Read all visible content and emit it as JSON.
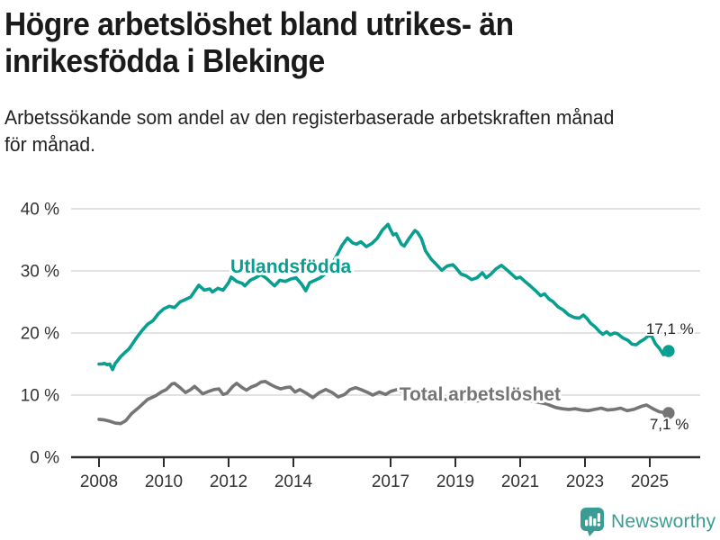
{
  "header": {
    "title_line1": "Högre arbetslöshet bland utrikes- än",
    "title_line2": "inrikesfödda i Blekinge",
    "subtitle_line1": "Arbetssökande som andel av den registerbaserade arbetskraften månad",
    "subtitle_line2": "för månad."
  },
  "footer": {
    "brand": "Newsworthy",
    "brand_color": "#3a9d95"
  },
  "colors": {
    "series_foreign_born": "#089e90",
    "series_total": "#757575",
    "axis": "#2e2e2e",
    "tick_label": "#333333",
    "grid": "#d9d9d9",
    "value_label": "#222222",
    "background": "#ffffff"
  },
  "chart_data": {
    "type": "line",
    "title": "Högre arbetslöshet bland utrikes- än inrikesfödda i Blekinge",
    "subtitle": "Arbetssökande som andel av den registerbaserade arbetskraften månad för månad.",
    "xlabel": "",
    "ylabel": "",
    "grid": "horizontal",
    "legend_position": "inline-labels",
    "ylim": [
      0,
      40
    ],
    "y_ticks": [
      0,
      10,
      20,
      30,
      40
    ],
    "y_tick_labels": [
      "0 %",
      "10 %",
      "20 %",
      "30 %",
      "40 %"
    ],
    "x_ticks": [
      2008,
      2010,
      2012,
      2014,
      2017,
      2019,
      2021,
      2023,
      2025
    ],
    "x_tick_labels": [
      "2008",
      "2010",
      "2012",
      "2014",
      "2017",
      "2019",
      "2021",
      "2023",
      "2025"
    ],
    "series": [
      {
        "name": "Utlandsfödda",
        "color": "#089e90",
        "end_value_label": "17,1 %",
        "name_label_pos": {
          "x": 2013.92,
          "y": 29.7
        },
        "end_label_pos": {
          "x": 2025.62,
          "y": 19.85
        },
        "points": [
          [
            2008.0,
            15.0
          ],
          [
            2008.08,
            15.0
          ],
          [
            2008.17,
            15.1
          ],
          [
            2008.25,
            14.9
          ],
          [
            2008.33,
            15.0
          ],
          [
            2008.42,
            14.1
          ],
          [
            2008.5,
            15.1
          ],
          [
            2008.58,
            15.6
          ],
          [
            2008.67,
            16.2
          ],
          [
            2008.75,
            16.6
          ],
          [
            2008.83,
            17.0
          ],
          [
            2008.92,
            17.4
          ],
          [
            2009.0,
            18.0
          ],
          [
            2009.17,
            19.3
          ],
          [
            2009.33,
            20.4
          ],
          [
            2009.5,
            21.4
          ],
          [
            2009.67,
            22.0
          ],
          [
            2009.83,
            23.1
          ],
          [
            2010.0,
            23.9
          ],
          [
            2010.17,
            24.3
          ],
          [
            2010.33,
            24.1
          ],
          [
            2010.5,
            25.0
          ],
          [
            2010.67,
            25.4
          ],
          [
            2010.83,
            25.8
          ],
          [
            2011.0,
            27.1
          ],
          [
            2011.08,
            27.7
          ],
          [
            2011.25,
            26.9
          ],
          [
            2011.42,
            27.1
          ],
          [
            2011.5,
            26.6
          ],
          [
            2011.67,
            27.2
          ],
          [
            2011.83,
            26.9
          ],
          [
            2012.0,
            28.1
          ],
          [
            2012.08,
            29.0
          ],
          [
            2012.25,
            28.3
          ],
          [
            2012.42,
            28.0
          ],
          [
            2012.5,
            27.6
          ],
          [
            2012.67,
            28.5
          ],
          [
            2012.83,
            28.9
          ],
          [
            2013.0,
            29.4
          ],
          [
            2013.17,
            28.8
          ],
          [
            2013.33,
            28.0
          ],
          [
            2013.42,
            27.6
          ],
          [
            2013.58,
            28.5
          ],
          [
            2013.75,
            28.3
          ],
          [
            2013.92,
            28.7
          ],
          [
            2014.08,
            28.9
          ],
          [
            2014.25,
            27.9
          ],
          [
            2014.38,
            26.8
          ],
          [
            2014.5,
            28.1
          ],
          [
            2014.67,
            28.5
          ],
          [
            2014.83,
            28.9
          ],
          [
            2015.0,
            29.6
          ],
          [
            2015.17,
            30.9
          ],
          [
            2015.33,
            32.4
          ],
          [
            2015.5,
            34.1
          ],
          [
            2015.67,
            35.3
          ],
          [
            2015.83,
            34.5
          ],
          [
            2015.95,
            34.3
          ],
          [
            2016.08,
            34.7
          ],
          [
            2016.25,
            33.9
          ],
          [
            2016.42,
            34.4
          ],
          [
            2016.58,
            35.2
          ],
          [
            2016.75,
            36.6
          ],
          [
            2016.92,
            37.5
          ],
          [
            2017.0,
            36.6
          ],
          [
            2017.08,
            35.8
          ],
          [
            2017.17,
            36.0
          ],
          [
            2017.33,
            34.3
          ],
          [
            2017.42,
            34.0
          ],
          [
            2017.58,
            35.3
          ],
          [
            2017.75,
            36.5
          ],
          [
            2017.83,
            36.2
          ],
          [
            2017.95,
            35.2
          ],
          [
            2018.08,
            33.2
          ],
          [
            2018.25,
            31.9
          ],
          [
            2018.42,
            31.0
          ],
          [
            2018.58,
            30.1
          ],
          [
            2018.75,
            30.8
          ],
          [
            2018.92,
            31.0
          ],
          [
            2019.0,
            30.6
          ],
          [
            2019.17,
            29.5
          ],
          [
            2019.33,
            29.2
          ],
          [
            2019.5,
            28.6
          ],
          [
            2019.67,
            28.9
          ],
          [
            2019.83,
            29.7
          ],
          [
            2019.95,
            28.9
          ],
          [
            2020.08,
            29.4
          ],
          [
            2020.25,
            30.3
          ],
          [
            2020.42,
            30.9
          ],
          [
            2020.58,
            30.2
          ],
          [
            2020.75,
            29.4
          ],
          [
            2020.88,
            28.8
          ],
          [
            2021.0,
            29.0
          ],
          [
            2021.17,
            28.2
          ],
          [
            2021.33,
            27.5
          ],
          [
            2021.5,
            26.7
          ],
          [
            2021.63,
            26.0
          ],
          [
            2021.75,
            26.3
          ],
          [
            2021.9,
            25.4
          ],
          [
            2022.0,
            25.1
          ],
          [
            2022.17,
            24.2
          ],
          [
            2022.33,
            23.7
          ],
          [
            2022.5,
            22.9
          ],
          [
            2022.67,
            22.5
          ],
          [
            2022.83,
            22.4
          ],
          [
            2022.95,
            22.9
          ],
          [
            2023.05,
            22.4
          ],
          [
            2023.17,
            21.6
          ],
          [
            2023.33,
            20.9
          ],
          [
            2023.45,
            20.2
          ],
          [
            2023.55,
            19.8
          ],
          [
            2023.67,
            20.2
          ],
          [
            2023.78,
            19.7
          ],
          [
            2023.9,
            20.0
          ],
          [
            2024.0,
            19.9
          ],
          [
            2024.17,
            19.2
          ],
          [
            2024.33,
            18.8
          ],
          [
            2024.45,
            18.2
          ],
          [
            2024.58,
            18.1
          ],
          [
            2024.7,
            18.6
          ],
          [
            2024.83,
            19.0
          ],
          [
            2024.95,
            19.5
          ],
          [
            2025.05,
            19.6
          ],
          [
            2025.17,
            18.3
          ],
          [
            2025.3,
            17.5
          ],
          [
            2025.42,
            16.5
          ],
          [
            2025.58,
            17.1
          ]
        ]
      },
      {
        "name": "Total arbetslöshet",
        "color": "#757575",
        "end_value_label": "7,1 %",
        "name_label_pos": {
          "x": 2019.76,
          "y": 9.1
        },
        "end_label_pos": {
          "x": 2025.6,
          "y": 4.5
        },
        "points": [
          [
            2008.0,
            6.1
          ],
          [
            2008.17,
            6.0
          ],
          [
            2008.33,
            5.8
          ],
          [
            2008.5,
            5.5
          ],
          [
            2008.67,
            5.4
          ],
          [
            2008.83,
            5.9
          ],
          [
            2009.0,
            7.0
          ],
          [
            2009.25,
            8.1
          ],
          [
            2009.5,
            9.3
          ],
          [
            2009.75,
            9.9
          ],
          [
            2009.92,
            10.5
          ],
          [
            2010.08,
            10.9
          ],
          [
            2010.25,
            11.8
          ],
          [
            2010.33,
            11.9
          ],
          [
            2010.5,
            11.2
          ],
          [
            2010.67,
            10.4
          ],
          [
            2010.83,
            10.9
          ],
          [
            2010.95,
            11.4
          ],
          [
            2011.08,
            10.8
          ],
          [
            2011.2,
            10.2
          ],
          [
            2011.38,
            10.6
          ],
          [
            2011.55,
            10.9
          ],
          [
            2011.7,
            11.0
          ],
          [
            2011.83,
            10.1
          ],
          [
            2011.95,
            10.3
          ],
          [
            2012.13,
            11.4
          ],
          [
            2012.25,
            11.9
          ],
          [
            2012.42,
            11.2
          ],
          [
            2012.55,
            10.8
          ],
          [
            2012.7,
            11.3
          ],
          [
            2012.85,
            11.6
          ],
          [
            2013.0,
            12.1
          ],
          [
            2013.13,
            12.2
          ],
          [
            2013.3,
            11.7
          ],
          [
            2013.45,
            11.3
          ],
          [
            2013.6,
            11.0
          ],
          [
            2013.75,
            11.2
          ],
          [
            2013.9,
            11.3
          ],
          [
            2014.05,
            10.5
          ],
          [
            2014.2,
            10.9
          ],
          [
            2014.4,
            10.3
          ],
          [
            2014.6,
            9.6
          ],
          [
            2014.8,
            10.4
          ],
          [
            2015.0,
            10.9
          ],
          [
            2015.2,
            10.4
          ],
          [
            2015.38,
            9.7
          ],
          [
            2015.58,
            10.1
          ],
          [
            2015.75,
            10.9
          ],
          [
            2015.92,
            11.2
          ],
          [
            2016.08,
            10.9
          ],
          [
            2016.3,
            10.4
          ],
          [
            2016.45,
            10.0
          ],
          [
            2016.65,
            10.5
          ],
          [
            2016.85,
            10.1
          ],
          [
            2017.0,
            10.6
          ],
          [
            2017.2,
            10.9
          ],
          [
            2017.5,
            10.2
          ],
          [
            2017.8,
            9.9
          ],
          [
            2018.2,
            9.5
          ],
          [
            2018.6,
            9.3
          ],
          [
            2019.0,
            9.2
          ],
          [
            2019.4,
            9.0
          ],
          [
            2019.8,
            9.1
          ],
          [
            2020.2,
            9.8
          ],
          [
            2020.6,
            9.6
          ],
          [
            2021.0,
            9.3
          ],
          [
            2021.4,
            9.0
          ],
          [
            2021.8,
            8.6
          ],
          [
            2022.1,
            8.0
          ],
          [
            2022.3,
            7.8
          ],
          [
            2022.5,
            7.7
          ],
          [
            2022.7,
            7.8
          ],
          [
            2022.9,
            7.6
          ],
          [
            2023.1,
            7.5
          ],
          [
            2023.3,
            7.7
          ],
          [
            2023.5,
            7.9
          ],
          [
            2023.7,
            7.6
          ],
          [
            2023.9,
            7.7
          ],
          [
            2024.1,
            7.9
          ],
          [
            2024.3,
            7.5
          ],
          [
            2024.5,
            7.7
          ],
          [
            2024.75,
            8.2
          ],
          [
            2024.9,
            8.4
          ],
          [
            2025.1,
            7.8
          ],
          [
            2025.3,
            7.3
          ],
          [
            2025.45,
            7.2
          ],
          [
            2025.58,
            7.1
          ]
        ]
      }
    ]
  }
}
